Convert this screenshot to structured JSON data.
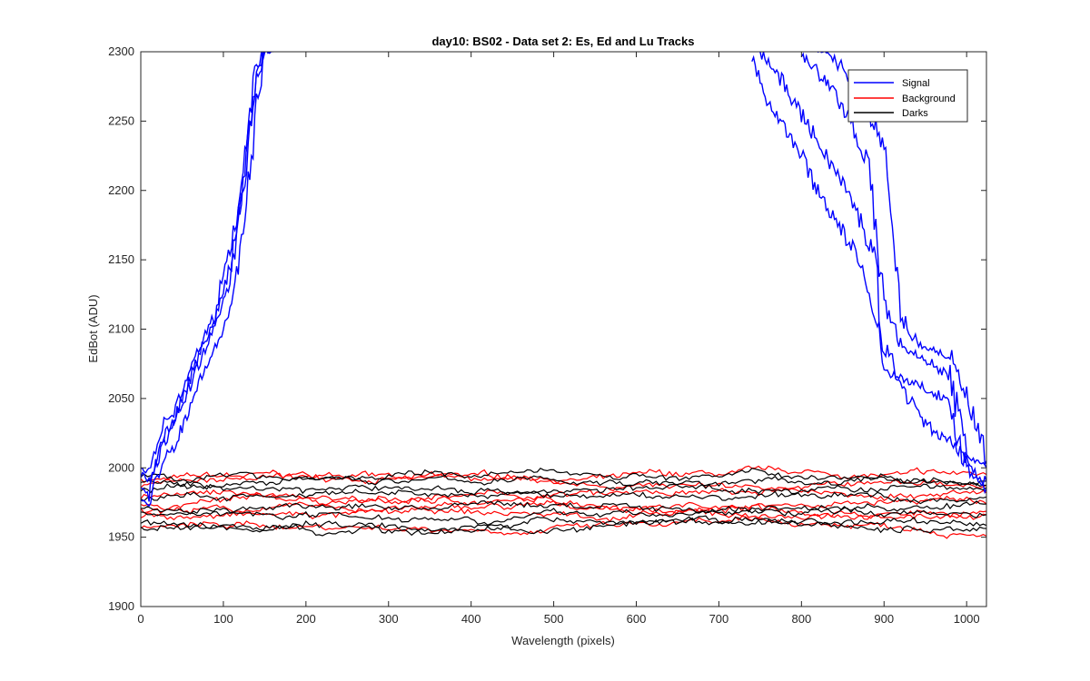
{
  "chart_data": {
    "type": "line",
    "title": "day10: BS02 - Data set 2: Es, Ed and Lu Tracks",
    "xlabel": "Wavelength (pixels)",
    "ylabel": "EdBot (ADU)",
    "xlim": [
      0,
      1024
    ],
    "ylim": [
      1900,
      2300
    ],
    "xticks": [
      0,
      100,
      200,
      300,
      400,
      500,
      600,
      700,
      800,
      900,
      1000
    ],
    "yticks": [
      1900,
      1950,
      2000,
      2050,
      2100,
      2150,
      2200,
      2250,
      2300
    ],
    "grid": false,
    "legend": {
      "position": "top-right",
      "entries": [
        {
          "name": "Signal",
          "color": "#0000ff"
        },
        {
          "name": "Background",
          "color": "#ff0000"
        },
        {
          "name": "Darks",
          "color": "#000000"
        }
      ]
    },
    "series": [
      {
        "name": "Signal",
        "color": "#0000ff",
        "lines": [
          {
            "x": [
              0,
              10,
              20,
              30,
              40,
              50,
              60,
              70,
              80,
              90,
              100,
              110,
              120,
              130,
              140,
              150,
              160
            ],
            "y": [
              2000,
              1998,
              2020,
              2035,
              2040,
              2055,
              2070,
              2085,
              2100,
              2110,
              2140,
              2160,
              2200,
              2250,
              2290,
              2300,
              2300
            ]
          },
          {
            "x": [
              0,
              10,
              20,
              30,
              40,
              50,
              60,
              70,
              80,
              90,
              100,
              110,
              120,
              130,
              140,
              150,
              160
            ],
            "y": [
              1985,
              1982,
              2005,
              2020,
              2030,
              2045,
              2060,
              2075,
              2090,
              2100,
              2120,
              2140,
              2180,
              2230,
              2280,
              2300,
              2300
            ]
          },
          {
            "x": [
              0,
              10,
              20,
              30,
              40,
              50,
              60,
              70,
              80,
              90,
              100,
              110,
              120,
              130,
              140,
              150
            ],
            "y": [
              1975,
              1975,
              1995,
              2010,
              2015,
              2030,
              2045,
              2060,
              2075,
              2085,
              2100,
              2120,
              2150,
              2200,
              2260,
              2300
            ]
          },
          {
            "x": [
              0,
              10,
              20,
              30,
              40,
              50,
              60,
              70,
              80,
              90,
              100,
              110,
              120,
              130,
              140,
              150
            ],
            "y": [
              1995,
              1990,
              2010,
              2025,
              2035,
              2050,
              2065,
              2080,
              2095,
              2105,
              2130,
              2150,
              2190,
              2240,
              2285,
              2300
            ]
          },
          {
            "x": [
              740,
              760,
              780,
              800,
              820,
              840,
              860,
              880,
              900,
              920,
              940,
              960,
              980,
              1000,
              1024
            ],
            "y": [
              2300,
              2265,
              2245,
              2225,
              2200,
              2180,
              2160,
              2130,
              2090,
              2060,
              2040,
              2025,
              2020,
              2005,
              1990
            ]
          },
          {
            "x": [
              750,
              770,
              790,
              810,
              830,
              850,
              870,
              890,
              900,
              920,
              940,
              960,
              980,
              1000,
              1024
            ],
            "y": [
              2300,
              2285,
              2265,
              2245,
              2225,
              2205,
              2180,
              2150,
              2070,
              2065,
              2060,
              2055,
              2045,
              2000,
              1985
            ]
          },
          {
            "x": [
              800,
              820,
              840,
              860,
              880,
              900,
              920,
              940,
              960,
              980,
              1000,
              1024
            ],
            "y": [
              2300,
              2285,
              2270,
              2250,
              2220,
              2120,
              2090,
              2080,
              2075,
              2065,
              2010,
              2000
            ]
          },
          {
            "x": [
              820,
              840,
              860,
              880,
              900,
              920,
              940,
              960,
              980,
              1000,
              1024
            ],
            "y": [
              2300,
              2295,
              2280,
              2260,
              2230,
              2110,
              2090,
              2085,
              2080,
              2050,
              2005
            ]
          }
        ]
      },
      {
        "name": "Background",
        "color": "#ff0000",
        "levels": [
          1992,
          1975,
          1970,
          1965,
          1958,
          1988,
          1980
        ]
      },
      {
        "name": "Darks",
        "color": "#000000",
        "levels": [
          1995,
          1990,
          1985,
          1978,
          1972,
          1968,
          1962,
          1956
        ]
      }
    ]
  }
}
